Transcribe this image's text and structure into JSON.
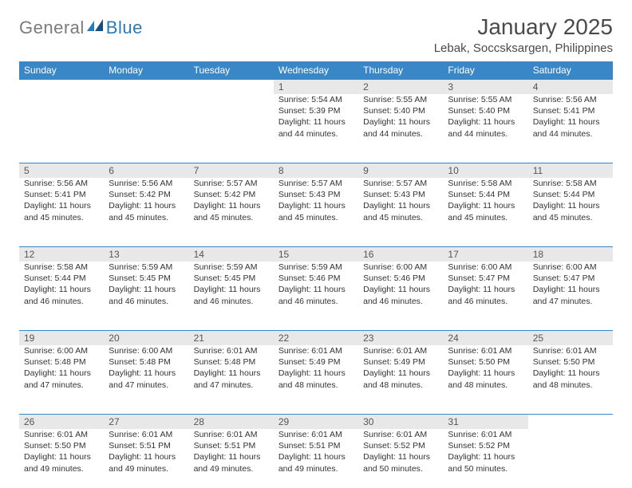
{
  "brand": {
    "general": "General",
    "blue": "Blue"
  },
  "title": "January 2025",
  "location": "Lebak, Soccsksargen, Philippines",
  "colors": {
    "header_bg": "#3a87c8",
    "header_text": "#ffffff",
    "daynum_bg": "#e8e8e8",
    "border": "#3a87c8",
    "text": "#333333",
    "logo_gray": "#7b7b7b",
    "logo_blue": "#2a7ab8"
  },
  "weekdays": [
    "Sunday",
    "Monday",
    "Tuesday",
    "Wednesday",
    "Thursday",
    "Friday",
    "Saturday"
  ],
  "weeks": [
    {
      "nums": [
        "",
        "",
        "",
        "1",
        "2",
        "3",
        "4"
      ],
      "cells": [
        null,
        null,
        null,
        {
          "sunrise": "5:54 AM",
          "sunset": "5:39 PM",
          "dl1": "Daylight: 11 hours",
          "dl2": "and 44 minutes."
        },
        {
          "sunrise": "5:55 AM",
          "sunset": "5:40 PM",
          "dl1": "Daylight: 11 hours",
          "dl2": "and 44 minutes."
        },
        {
          "sunrise": "5:55 AM",
          "sunset": "5:40 PM",
          "dl1": "Daylight: 11 hours",
          "dl2": "and 44 minutes."
        },
        {
          "sunrise": "5:56 AM",
          "sunset": "5:41 PM",
          "dl1": "Daylight: 11 hours",
          "dl2": "and 44 minutes."
        }
      ]
    },
    {
      "nums": [
        "5",
        "6",
        "7",
        "8",
        "9",
        "10",
        "11"
      ],
      "cells": [
        {
          "sunrise": "5:56 AM",
          "sunset": "5:41 PM",
          "dl1": "Daylight: 11 hours",
          "dl2": "and 45 minutes."
        },
        {
          "sunrise": "5:56 AM",
          "sunset": "5:42 PM",
          "dl1": "Daylight: 11 hours",
          "dl2": "and 45 minutes."
        },
        {
          "sunrise": "5:57 AM",
          "sunset": "5:42 PM",
          "dl1": "Daylight: 11 hours",
          "dl2": "and 45 minutes."
        },
        {
          "sunrise": "5:57 AM",
          "sunset": "5:43 PM",
          "dl1": "Daylight: 11 hours",
          "dl2": "and 45 minutes."
        },
        {
          "sunrise": "5:57 AM",
          "sunset": "5:43 PM",
          "dl1": "Daylight: 11 hours",
          "dl2": "and 45 minutes."
        },
        {
          "sunrise": "5:58 AM",
          "sunset": "5:44 PM",
          "dl1": "Daylight: 11 hours",
          "dl2": "and 45 minutes."
        },
        {
          "sunrise": "5:58 AM",
          "sunset": "5:44 PM",
          "dl1": "Daylight: 11 hours",
          "dl2": "and 45 minutes."
        }
      ]
    },
    {
      "nums": [
        "12",
        "13",
        "14",
        "15",
        "16",
        "17",
        "18"
      ],
      "cells": [
        {
          "sunrise": "5:58 AM",
          "sunset": "5:44 PM",
          "dl1": "Daylight: 11 hours",
          "dl2": "and 46 minutes."
        },
        {
          "sunrise": "5:59 AM",
          "sunset": "5:45 PM",
          "dl1": "Daylight: 11 hours",
          "dl2": "and 46 minutes."
        },
        {
          "sunrise": "5:59 AM",
          "sunset": "5:45 PM",
          "dl1": "Daylight: 11 hours",
          "dl2": "and 46 minutes."
        },
        {
          "sunrise": "5:59 AM",
          "sunset": "5:46 PM",
          "dl1": "Daylight: 11 hours",
          "dl2": "and 46 minutes."
        },
        {
          "sunrise": "6:00 AM",
          "sunset": "5:46 PM",
          "dl1": "Daylight: 11 hours",
          "dl2": "and 46 minutes."
        },
        {
          "sunrise": "6:00 AM",
          "sunset": "5:47 PM",
          "dl1": "Daylight: 11 hours",
          "dl2": "and 46 minutes."
        },
        {
          "sunrise": "6:00 AM",
          "sunset": "5:47 PM",
          "dl1": "Daylight: 11 hours",
          "dl2": "and 47 minutes."
        }
      ]
    },
    {
      "nums": [
        "19",
        "20",
        "21",
        "22",
        "23",
        "24",
        "25"
      ],
      "cells": [
        {
          "sunrise": "6:00 AM",
          "sunset": "5:48 PM",
          "dl1": "Daylight: 11 hours",
          "dl2": "and 47 minutes."
        },
        {
          "sunrise": "6:00 AM",
          "sunset": "5:48 PM",
          "dl1": "Daylight: 11 hours",
          "dl2": "and 47 minutes."
        },
        {
          "sunrise": "6:01 AM",
          "sunset": "5:48 PM",
          "dl1": "Daylight: 11 hours",
          "dl2": "and 47 minutes."
        },
        {
          "sunrise": "6:01 AM",
          "sunset": "5:49 PM",
          "dl1": "Daylight: 11 hours",
          "dl2": "and 48 minutes."
        },
        {
          "sunrise": "6:01 AM",
          "sunset": "5:49 PM",
          "dl1": "Daylight: 11 hours",
          "dl2": "and 48 minutes."
        },
        {
          "sunrise": "6:01 AM",
          "sunset": "5:50 PM",
          "dl1": "Daylight: 11 hours",
          "dl2": "and 48 minutes."
        },
        {
          "sunrise": "6:01 AM",
          "sunset": "5:50 PM",
          "dl1": "Daylight: 11 hours",
          "dl2": "and 48 minutes."
        }
      ]
    },
    {
      "nums": [
        "26",
        "27",
        "28",
        "29",
        "30",
        "31",
        ""
      ],
      "cells": [
        {
          "sunrise": "6:01 AM",
          "sunset": "5:50 PM",
          "dl1": "Daylight: 11 hours",
          "dl2": "and 49 minutes."
        },
        {
          "sunrise": "6:01 AM",
          "sunset": "5:51 PM",
          "dl1": "Daylight: 11 hours",
          "dl2": "and 49 minutes."
        },
        {
          "sunrise": "6:01 AM",
          "sunset": "5:51 PM",
          "dl1": "Daylight: 11 hours",
          "dl2": "and 49 minutes."
        },
        {
          "sunrise": "6:01 AM",
          "sunset": "5:51 PM",
          "dl1": "Daylight: 11 hours",
          "dl2": "and 49 minutes."
        },
        {
          "sunrise": "6:01 AM",
          "sunset": "5:52 PM",
          "dl1": "Daylight: 11 hours",
          "dl2": "and 50 minutes."
        },
        {
          "sunrise": "6:01 AM",
          "sunset": "5:52 PM",
          "dl1": "Daylight: 11 hours",
          "dl2": "and 50 minutes."
        },
        null
      ]
    }
  ],
  "labels": {
    "sunrise": "Sunrise: ",
    "sunset": "Sunset: "
  }
}
